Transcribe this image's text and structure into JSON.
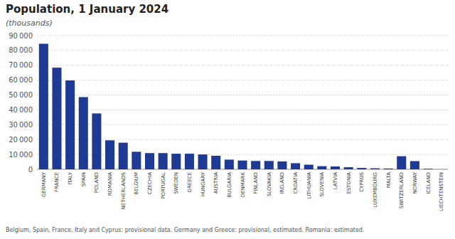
{
  "chart_data": {
    "type": "bar",
    "title": "Population, 1 January 2024",
    "subtitle": "(thousands)",
    "footnote": "Belgium, Spain, France, Italy and Cyprus: provisional data. Germany and Greece: provisional, estimated. Romania: estimated.",
    "categories": [
      "GERMANY",
      "FRANCE",
      "ITALY",
      "SPAIN",
      "POLAND",
      "ROMANIA",
      "NETHERLANDS",
      "BELGIUM",
      "CZECHIA",
      "PORTUGAL",
      "SWEDEN",
      "GREECE",
      "HUNGARY",
      "AUSTRIA",
      "BULGARIA",
      "DENMARK",
      "FINLAND",
      "SLOVAKIA",
      "IRELAND",
      "CROATIA",
      "LITHUANIA",
      "SLOVENIA",
      "LATVIA",
      "ESTONIA",
      "CYPRUS",
      "LUXEMBOURG",
      "MALTA",
      "SWITZERLAND",
      "NORWAY",
      "ICELAND",
      "LIECHTENSTEIN"
    ],
    "values": [
      84500,
      68400,
      59800,
      48600,
      37600,
      19500,
      17900,
      11800,
      10900,
      10900,
      10500,
      10500,
      10000,
      9100,
      6500,
      5900,
      5600,
      5600,
      5300,
      4100,
      3100,
      2100,
      1900,
      1400,
      920,
      700,
      540,
      8800,
      5500,
      380,
      38
    ],
    "color": "#1f3a93",
    "ylim": [
      0,
      90000
    ],
    "yticks": [
      0,
      {
        "value": 10000,
        "label": "10 000"
      },
      {
        "value": 20000,
        "label": "20 000"
      },
      {
        "value": 30000,
        "label": "30 000"
      },
      {
        "value": 40000,
        "label": "40 000"
      },
      {
        "value": 50000,
        "label": "50 000"
      },
      {
        "value": 60000,
        "label": "60 000"
      },
      {
        "value": 70000,
        "label": "70 000"
      },
      {
        "value": 80000,
        "label": "80 000"
      },
      {
        "value": 90000,
        "label": "90 000"
      }
    ],
    "grid": true
  }
}
